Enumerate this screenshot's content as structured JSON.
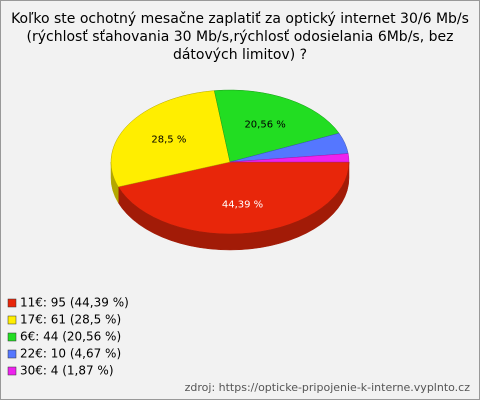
{
  "chart_data": {
    "type": "pie3d",
    "title": [
      "Koľko ste ochotný mesačne zaplatiť za optický internet 30/6 Mb/s",
      "(rýchlosť sťahovania 30 Mb/s,rýchlosť odosielania 6Mb/s, bez",
      "dátových limitov) ?"
    ],
    "categories": [
      "11€: 95 (44,39 %)",
      "17€: 61 (28,5 %)",
      "6€: 44 (20,56 %)",
      "22€: 10 (4,67 %)",
      "30€: 4 (1,87 %)"
    ],
    "values": [
      44.39,
      28.5,
      20.56,
      4.67,
      1.87
    ],
    "value_labels": [
      "44,39 %",
      "28,5 %",
      "20,56 %",
      null,
      null
    ],
    "colors": [
      "#e8260a",
      "#ffee00",
      "#22dd22",
      "#5577ff",
      "#ee22ee"
    ],
    "label_colors": [
      "#ffffff",
      "#000000",
      "#000000",
      null,
      null
    ],
    "source": "zdroj: https://opticke-pripojenie-k-interne.vyplnto.cz"
  }
}
